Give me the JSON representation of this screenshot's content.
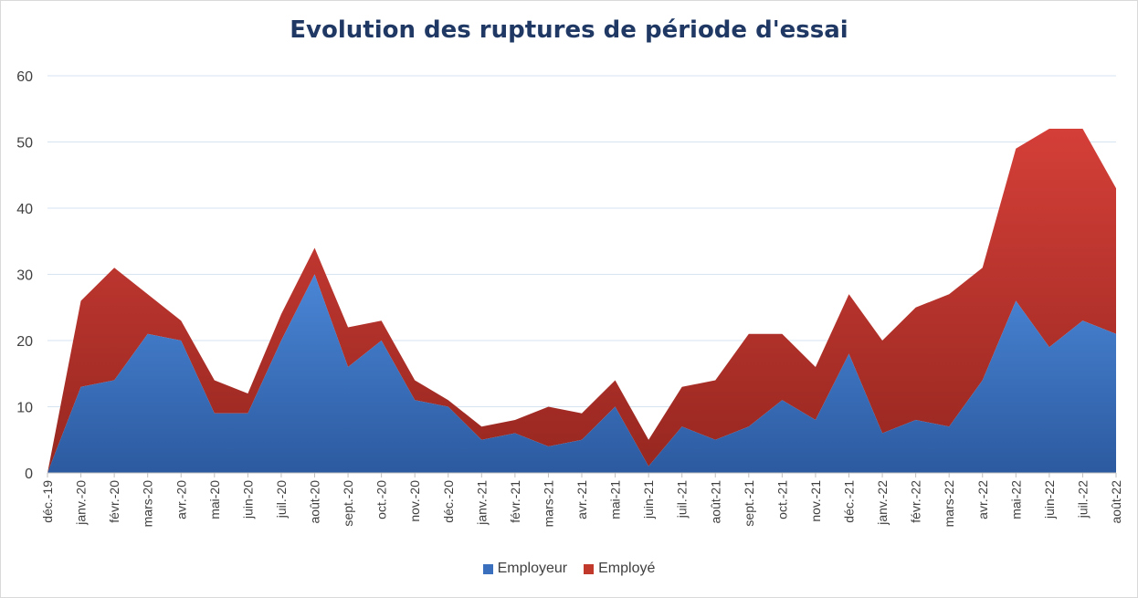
{
  "chart_data": {
    "type": "area",
    "stacked": true,
    "title": "Evolution des ruptures de période d'essai",
    "categories": [
      "déc.-19",
      "janv.-20",
      "févr.-20",
      "mars-20",
      "avr.-20",
      "mai-20",
      "juin-20",
      "juil.-20",
      "août-20",
      "sept.-20",
      "oct.-20",
      "nov.-20",
      "déc.-20",
      "janv.-21",
      "févr.-21",
      "mars-21",
      "avr.-21",
      "mai-21",
      "juin-21",
      "juil.-21",
      "août-21",
      "sept.-21",
      "oct.-21",
      "nov.-21",
      "déc.-21",
      "janv.-22",
      "févr.-22",
      "mars-22",
      "avr.-22",
      "mai-22",
      "juin-22",
      "juil.-22",
      "août-22"
    ],
    "series": [
      {
        "name": "Employeur",
        "color": "#3a6fbd",
        "values": [
          0,
          13,
          14,
          21,
          20,
          9,
          9,
          20,
          30,
          16,
          20,
          11,
          10,
          5,
          6,
          4,
          5,
          10,
          1,
          7,
          5,
          7,
          11,
          8,
          18,
          6,
          8,
          7,
          14,
          26,
          19,
          23,
          21
        ]
      },
      {
        "name": "Employé",
        "color": "#c0392b",
        "values": [
          0,
          13,
          17,
          6,
          3,
          5,
          3,
          4,
          4,
          6,
          3,
          3,
          1,
          2,
          2,
          6,
          4,
          4,
          4,
          6,
          9,
          14,
          10,
          8,
          9,
          14,
          17,
          20,
          17,
          23,
          33,
          29,
          22
        ]
      }
    ],
    "ylim": [
      0,
      60
    ],
    "yticks": [
      0,
      10,
      20,
      30,
      40,
      50,
      60
    ],
    "grid": true,
    "legend_position": "bottom"
  }
}
